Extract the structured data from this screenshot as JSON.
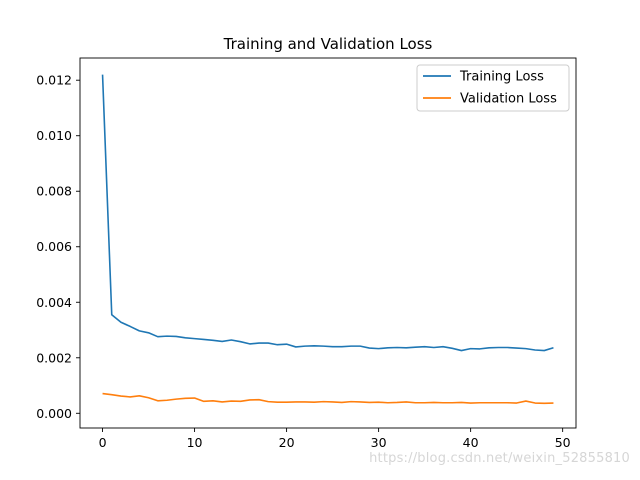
{
  "chart_data": {
    "type": "line",
    "title": "Training and Validation Loss",
    "xlabel": "",
    "ylabel": "",
    "xlim": [
      -2.45,
      51.45
    ],
    "ylim": [
      -0.00053,
      0.0128
    ],
    "xticks": [
      0,
      10,
      20,
      30,
      40,
      50
    ],
    "yticks": [
      0.0,
      0.002,
      0.004,
      0.006,
      0.008,
      0.01,
      0.012
    ],
    "ytick_labels": [
      "0.000",
      "0.002",
      "0.004",
      "0.006",
      "0.008",
      "0.010",
      "0.012"
    ],
    "grid": false,
    "legend_position": "top-right",
    "x": [
      0,
      1,
      2,
      3,
      4,
      5,
      6,
      7,
      8,
      9,
      10,
      11,
      12,
      13,
      14,
      15,
      16,
      17,
      18,
      19,
      20,
      21,
      22,
      23,
      24,
      25,
      26,
      27,
      28,
      29,
      30,
      31,
      32,
      33,
      34,
      35,
      36,
      37,
      38,
      39,
      40,
      41,
      42,
      43,
      44,
      45,
      46,
      47,
      48,
      49
    ],
    "series": [
      {
        "name": "Training Loss",
        "color": "#1f77b4",
        "values": [
          0.0122,
          0.00355,
          0.00328,
          0.00313,
          0.00297,
          0.0029,
          0.00276,
          0.00278,
          0.00277,
          0.00272,
          0.00269,
          0.00266,
          0.00263,
          0.00259,
          0.00264,
          0.00258,
          0.0025,
          0.00253,
          0.00253,
          0.00247,
          0.00249,
          0.00239,
          0.00242,
          0.00243,
          0.00242,
          0.0024,
          0.0024,
          0.00242,
          0.00242,
          0.00235,
          0.00233,
          0.00236,
          0.00237,
          0.00236,
          0.00238,
          0.0024,
          0.00237,
          0.0024,
          0.00234,
          0.00226,
          0.00233,
          0.00232,
          0.00236,
          0.00237,
          0.00237,
          0.00235,
          0.00233,
          0.00228,
          0.00226,
          0.00236
        ]
      },
      {
        "name": "Validation Loss",
        "color": "#ff7f0e",
        "values": [
          0.00071,
          0.00067,
          0.00062,
          0.00059,
          0.00063,
          0.00056,
          0.00045,
          0.00047,
          0.00051,
          0.00054,
          0.00055,
          0.00043,
          0.00045,
          0.00041,
          0.00044,
          0.00043,
          0.00048,
          0.00049,
          0.00042,
          0.0004,
          0.0004,
          0.00041,
          0.00041,
          0.0004,
          0.00042,
          0.00041,
          0.00039,
          0.00042,
          0.00041,
          0.00039,
          0.0004,
          0.00038,
          0.00039,
          0.00041,
          0.00038,
          0.00038,
          0.00039,
          0.00038,
          0.00038,
          0.00039,
          0.00037,
          0.00038,
          0.00038,
          0.00038,
          0.00038,
          0.00037,
          0.00044,
          0.00037,
          0.00036,
          0.00037
        ]
      }
    ]
  },
  "watermark": "https://blog.csdn.net/weixin_52855810"
}
